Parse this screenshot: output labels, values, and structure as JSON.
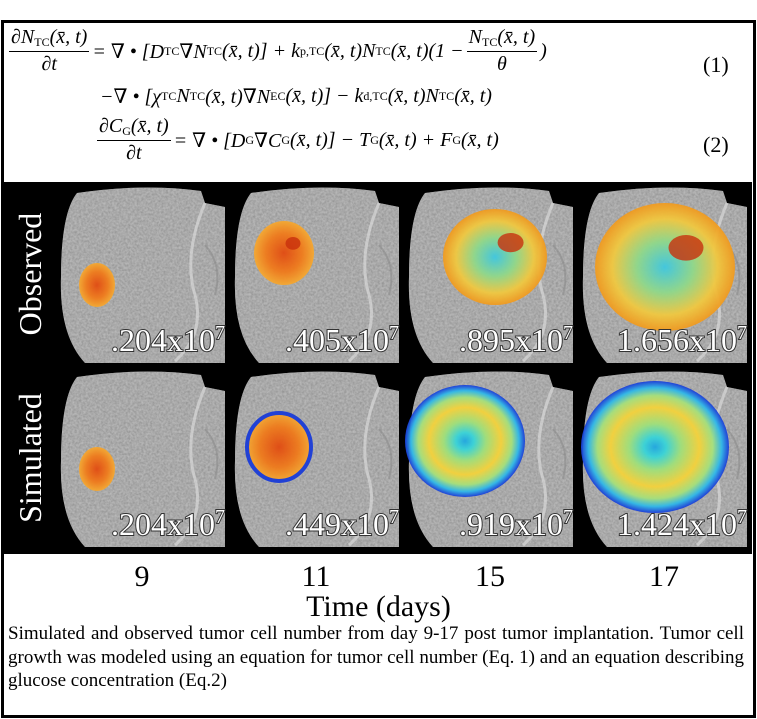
{
  "equations": [
    {
      "number": "(1)",
      "lines": [
        [
          {
            "frac": {
              "num": [
                "∂N",
                {
                  "sub": "TC"
                },
                "(x̄, t)"
              ],
              "den": [
                "∂t"
              ]
            }
          },
          " = ∇ • [D",
          {
            "sub": "TC"
          },
          "∇N",
          {
            "sub": "TC"
          },
          "(x̄, t)] + k",
          {
            "sub": "p,TC"
          },
          "(x̄, t)N",
          {
            "sub": "TC"
          },
          "(x̄, t)",
          "(1 − ",
          {
            "frac": {
              "num": [
                "N",
                {
                  "sub": "TC"
                },
                "(x̄, t)"
              ],
              "den": [
                "θ"
              ]
            }
          },
          ")"
        ],
        [
          "−∇ • [χ",
          {
            "sub": "TC"
          },
          "N",
          {
            "sub": "TC"
          },
          "(x̄, t)∇N",
          {
            "sub": "EC"
          },
          "(x̄, t)] − k",
          {
            "sub": "d,TC"
          },
          "(x̄, t)N",
          {
            "sub": "TC"
          },
          "(x̄, t)"
        ]
      ]
    },
    {
      "number": "(2)",
      "lines": [
        [
          {
            "frac": {
              "num": [
                "∂C",
                {
                  "sub": "G"
                },
                "(x̄, t)"
              ],
              "den": [
                "∂t"
              ]
            }
          },
          " = ∇ • [D",
          {
            "sub": "G"
          },
          "∇C",
          {
            "sub": "G"
          },
          "(x̄, t)] − T",
          {
            "sub": "G"
          },
          "(x̄, t) + F",
          {
            "sub": "G"
          },
          "(x̄, t)"
        ]
      ]
    }
  ],
  "figure": {
    "rows": [
      {
        "label": "Observed",
        "panels": [
          {
            "base": ".204x10",
            "exp": "7"
          },
          {
            "base": ".405x10",
            "exp": "7"
          },
          {
            "base": ".895x10",
            "exp": "7"
          },
          {
            "base": "1.656x10",
            "exp": "7"
          }
        ]
      },
      {
        "label": "Simulated",
        "panels": [
          {
            "base": ".204x10",
            "exp": "7"
          },
          {
            "base": ".449x10",
            "exp": "7"
          },
          {
            "base": ".919x10",
            "exp": "7"
          },
          {
            "base": "1.424x10",
            "exp": "7"
          }
        ]
      }
    ],
    "columns": [
      "9",
      "11",
      "15",
      "17"
    ],
    "axis_title": "Time (days)"
  },
  "caption": "Simulated and observed tumor cell number from day 9-17 post tumor implantation. Tumor cell growth was modeled using an equation for tumor cell number (Eq. 1) and an equation describing glucose concentration (Eq.2)"
}
